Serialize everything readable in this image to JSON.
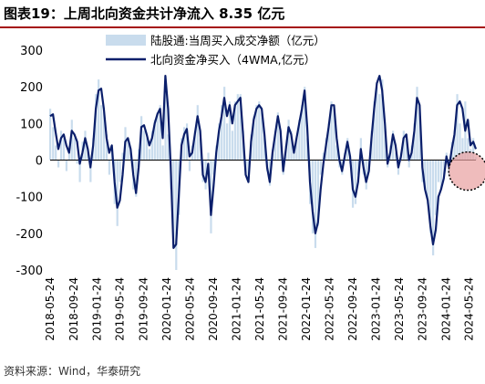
{
  "header": {
    "title_prefix": "图表19：",
    "title_text": "上周北向资金共计净流入 8.35 亿元"
  },
  "footer": {
    "source": "资料来源：Wind，华泰研究"
  },
  "colors": {
    "bars": "#c9dced",
    "line": "#0b1f6b",
    "highlight_circle": "#e8a0a0",
    "title_rule": "#a50f0f"
  },
  "chart_data": {
    "type": "bar+line",
    "ylim": [
      -300,
      300
    ],
    "yticks": [
      -300,
      -200,
      -100,
      0,
      100,
      200,
      300
    ],
    "x_start": "2018-05-24",
    "x_end": "2024-06-28",
    "xticks": [
      "2018-05-24",
      "2018-09-24",
      "2019-01-24",
      "2019-05-24",
      "2019-09-24",
      "2020-01-24",
      "2020-05-24",
      "2020-09-24",
      "2021-01-24",
      "2021-05-24",
      "2021-09-24",
      "2022-01-24",
      "2022-05-24",
      "2022-09-24",
      "2023-01-24",
      "2023-05-24",
      "2023-09-24",
      "2024-01-24",
      "2024-05-24"
    ],
    "legend_position": "top",
    "annotation": "highlight circle around the most recent weeks (2024-04 to 2024-06)",
    "series": [
      {
        "name": "陆股通:当周买入成交净额（亿元）",
        "kind": "bar",
        "x": [
          "2018-05-24",
          "2018-06-08",
          "2018-06-22",
          "2018-07-06",
          "2018-07-20",
          "2018-08-03",
          "2018-08-17",
          "2018-08-31",
          "2018-09-14",
          "2018-09-28",
          "2018-10-12",
          "2018-10-26",
          "2018-11-09",
          "2018-11-23",
          "2018-12-07",
          "2018-12-21",
          "2019-01-04",
          "2019-01-18",
          "2019-02-01",
          "2019-02-15",
          "2019-03-01",
          "2019-03-15",
          "2019-03-29",
          "2019-04-12",
          "2019-04-26",
          "2019-05-10",
          "2019-05-24",
          "2019-06-07",
          "2019-06-21",
          "2019-07-05",
          "2019-07-19",
          "2019-08-02",
          "2019-08-16",
          "2019-08-30",
          "2019-09-13",
          "2019-09-27",
          "2019-10-11",
          "2019-10-25",
          "2019-11-08",
          "2019-11-22",
          "2019-12-06",
          "2019-12-20",
          "2020-01-03",
          "2020-01-17",
          "2020-01-31",
          "2020-02-14",
          "2020-02-28",
          "2020-03-13",
          "2020-03-27",
          "2020-04-10",
          "2020-04-24",
          "2020-05-08",
          "2020-05-22",
          "2020-06-05",
          "2020-06-19",
          "2020-07-03",
          "2020-07-17",
          "2020-07-31",
          "2020-08-14",
          "2020-08-28",
          "2020-09-11",
          "2020-09-25",
          "2020-10-09",
          "2020-10-23",
          "2020-11-06",
          "2020-11-20",
          "2020-12-04",
          "2020-12-18",
          "2021-01-01",
          "2021-01-15",
          "2021-01-29",
          "2021-02-12",
          "2021-02-26",
          "2021-03-12",
          "2021-03-26",
          "2021-04-09",
          "2021-04-23",
          "2021-05-07",
          "2021-05-21",
          "2021-06-04",
          "2021-06-18",
          "2021-07-02",
          "2021-07-16",
          "2021-07-30",
          "2021-08-13",
          "2021-08-27",
          "2021-09-10",
          "2021-09-24",
          "2021-10-08",
          "2021-10-22",
          "2021-11-05",
          "2021-11-19",
          "2021-12-03",
          "2021-12-17",
          "2021-12-31",
          "2022-01-14",
          "2022-01-28",
          "2022-02-11",
          "2022-02-25",
          "2022-03-11",
          "2022-03-25",
          "2022-04-08",
          "2022-04-22",
          "2022-05-06",
          "2022-05-20",
          "2022-06-03",
          "2022-06-17",
          "2022-07-01",
          "2022-07-15",
          "2022-07-29",
          "2022-08-12",
          "2022-08-26",
          "2022-09-09",
          "2022-09-23",
          "2022-10-07",
          "2022-10-21",
          "2022-11-04",
          "2022-11-18",
          "2022-12-02",
          "2022-12-16",
          "2022-12-30",
          "2023-01-13",
          "2023-01-27",
          "2023-02-10",
          "2023-02-24",
          "2023-03-10",
          "2023-03-24",
          "2023-04-07",
          "2023-04-21",
          "2023-05-05",
          "2023-05-19",
          "2023-06-02",
          "2023-06-16",
          "2023-06-30",
          "2023-07-14",
          "2023-07-28",
          "2023-08-11",
          "2023-08-25",
          "2023-09-08",
          "2023-09-22",
          "2023-10-06",
          "2023-10-20",
          "2023-11-03",
          "2023-11-17",
          "2023-12-01",
          "2023-12-15",
          "2023-12-29",
          "2024-01-12",
          "2024-01-26",
          "2024-02-09",
          "2024-02-23",
          "2024-03-08",
          "2024-03-22",
          "2024-04-05",
          "2024-04-19",
          "2024-05-03",
          "2024-05-17",
          "2024-05-31",
          "2024-06-14",
          "2024-06-28"
        ],
        "values": [
          140,
          90,
          40,
          -20,
          80,
          60,
          -30,
          30,
          110,
          60,
          -10,
          -60,
          50,
          80,
          20,
          -60,
          60,
          180,
          220,
          150,
          130,
          70,
          -40,
          20,
          -120,
          -180,
          -60,
          20,
          90,
          60,
          20,
          -80,
          -100,
          30,
          120,
          80,
          60,
          30,
          80,
          110,
          130,
          150,
          40,
          210,
          70,
          -80,
          -230,
          -300,
          -150,
          60,
          90,
          100,
          -30,
          40,
          80,
          150,
          60,
          -60,
          -80,
          20,
          -200,
          -40,
          40,
          100,
          150,
          200,
          100,
          160,
          80,
          160,
          180,
          180,
          80,
          -40,
          -60,
          70,
          120,
          150,
          160,
          130,
          60,
          -30,
          -70,
          30,
          80,
          130,
          80,
          -40,
          40,
          110,
          80,
          30,
          60,
          110,
          150,
          200,
          60,
          -120,
          -200,
          -240,
          -180,
          -40,
          20,
          60,
          100,
          160,
          140,
          40,
          -20,
          -40,
          20,
          60,
          -10,
          -130,
          -120,
          -40,
          60,
          -40,
          -80,
          -30,
          80,
          160,
          200,
          180,
          220,
          90,
          -20,
          40,
          80,
          20,
          -40,
          20,
          80,
          60,
          -20,
          40,
          100,
          200,
          130,
          -60,
          -80,
          -120,
          -200,
          -260,
          -150,
          -60,
          -80,
          -40,
          20,
          -40,
          50,
          80,
          180,
          100,
          60,
          160,
          60,
          30,
          60,
          8.35
        ]
      },
      {
        "name": "北向资金净买入（4WMA,亿元）",
        "kind": "line",
        "x": [
          "2018-05-24",
          "2018-06-08",
          "2018-06-22",
          "2018-07-06",
          "2018-07-20",
          "2018-08-03",
          "2018-08-17",
          "2018-08-31",
          "2018-09-14",
          "2018-09-28",
          "2018-10-12",
          "2018-10-26",
          "2018-11-09",
          "2018-11-23",
          "2018-12-07",
          "2018-12-21",
          "2019-01-04",
          "2019-01-18",
          "2019-02-01",
          "2019-02-15",
          "2019-03-01",
          "2019-03-15",
          "2019-03-29",
          "2019-04-12",
          "2019-04-26",
          "2019-05-10",
          "2019-05-24",
          "2019-06-07",
          "2019-06-21",
          "2019-07-05",
          "2019-07-19",
          "2019-08-02",
          "2019-08-16",
          "2019-08-30",
          "2019-09-13",
          "2019-09-27",
          "2019-10-11",
          "2019-10-25",
          "2019-11-08",
          "2019-11-22",
          "2019-12-06",
          "2019-12-20",
          "2020-01-03",
          "2020-01-17",
          "2020-01-31",
          "2020-02-14",
          "2020-02-28",
          "2020-03-13",
          "2020-03-27",
          "2020-04-10",
          "2020-04-24",
          "2020-05-08",
          "2020-05-22",
          "2020-06-05",
          "2020-06-19",
          "2020-07-03",
          "2020-07-17",
          "2020-07-31",
          "2020-08-14",
          "2020-08-28",
          "2020-09-11",
          "2020-09-25",
          "2020-10-09",
          "2020-10-23",
          "2020-11-06",
          "2020-11-20",
          "2020-12-04",
          "2020-12-18",
          "2021-01-01",
          "2021-01-15",
          "2021-01-29",
          "2021-02-12",
          "2021-02-26",
          "2021-03-12",
          "2021-03-26",
          "2021-04-09",
          "2021-04-23",
          "2021-05-07",
          "2021-05-21",
          "2021-06-04",
          "2021-06-18",
          "2021-07-02",
          "2021-07-16",
          "2021-07-30",
          "2021-08-13",
          "2021-08-27",
          "2021-09-10",
          "2021-09-24",
          "2021-10-08",
          "2021-10-22",
          "2021-11-05",
          "2021-11-19",
          "2021-12-03",
          "2021-12-17",
          "2021-12-31",
          "2022-01-14",
          "2022-01-28",
          "2022-02-11",
          "2022-02-25",
          "2022-03-11",
          "2022-03-25",
          "2022-04-08",
          "2022-04-22",
          "2022-05-06",
          "2022-05-20",
          "2022-06-03",
          "2022-06-17",
          "2022-07-01",
          "2022-07-15",
          "2022-07-29",
          "2022-08-12",
          "2022-08-26",
          "2022-09-09",
          "2022-09-23",
          "2022-10-07",
          "2022-10-21",
          "2022-11-04",
          "2022-11-18",
          "2022-12-02",
          "2022-12-16",
          "2022-12-30",
          "2023-01-13",
          "2023-01-27",
          "2023-02-10",
          "2023-02-24",
          "2023-03-10",
          "2023-03-24",
          "2023-04-07",
          "2023-04-21",
          "2023-05-05",
          "2023-05-19",
          "2023-06-02",
          "2023-06-16",
          "2023-06-30",
          "2023-07-14",
          "2023-07-28",
          "2023-08-11",
          "2023-08-25",
          "2023-09-08",
          "2023-09-22",
          "2023-10-06",
          "2023-10-20",
          "2023-11-03",
          "2023-11-17",
          "2023-12-01",
          "2023-12-15",
          "2023-12-29",
          "2024-01-12",
          "2024-01-26",
          "2024-02-09",
          "2024-02-23",
          "2024-03-08",
          "2024-03-22",
          "2024-04-05",
          "2024-04-19",
          "2024-05-03",
          "2024-05-17",
          "2024-05-31",
          "2024-06-14",
          "2024-06-28"
        ],
        "values": [
          120,
          125,
          75,
          30,
          60,
          70,
          40,
          20,
          80,
          70,
          50,
          -10,
          20,
          60,
          30,
          -20,
          40,
          140,
          190,
          195,
          140,
          60,
          20,
          40,
          -60,
          -130,
          -110,
          -40,
          50,
          60,
          30,
          -40,
          -90,
          -20,
          90,
          95,
          70,
          40,
          60,
          100,
          125,
          140,
          60,
          230,
          140,
          -20,
          -240,
          -230,
          -100,
          40,
          70,
          85,
          10,
          20,
          70,
          120,
          80,
          -40,
          -60,
          -10,
          -150,
          -70,
          20,
          80,
          120,
          170,
          120,
          150,
          100,
          150,
          160,
          170,
          70,
          -40,
          -60,
          50,
          110,
          140,
          150,
          140,
          70,
          -20,
          -60,
          20,
          70,
          120,
          80,
          -30,
          30,
          90,
          70,
          20,
          60,
          100,
          140,
          190,
          90,
          -60,
          -140,
          -200,
          -170,
          -80,
          -10,
          40,
          90,
          150,
          150,
          60,
          0,
          -30,
          10,
          50,
          10,
          -80,
          -100,
          -60,
          30,
          -20,
          -60,
          -30,
          60,
          140,
          210,
          230,
          190,
          100,
          -10,
          20,
          70,
          40,
          -20,
          10,
          60,
          70,
          0,
          20,
          80,
          170,
          150,
          -20,
          -80,
          -110,
          -180,
          -230,
          -190,
          -100,
          -80,
          -50,
          10,
          -20,
          30,
          70,
          150,
          160,
          140,
          80,
          110,
          40,
          50,
          30
        ]
      }
    ]
  }
}
